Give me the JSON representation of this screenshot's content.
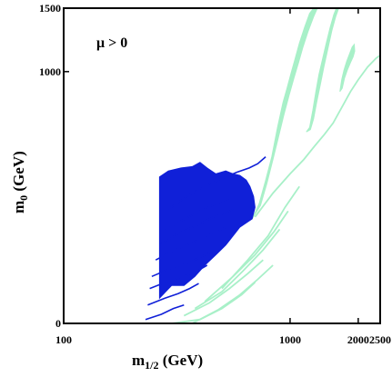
{
  "chart_data": {
    "type": "area",
    "title": "",
    "annotation": "μ > 0",
    "xlabel_main": "m",
    "xlabel_sub": "1/2",
    "xlabel_unit": " (GeV)",
    "ylabel_main": "m",
    "ylabel_sub": "0",
    "ylabel_unit": " (GeV)",
    "xscale": "log",
    "yscale": "log",
    "xlim": [
      100,
      2500
    ],
    "ylim": [
      0,
      1500
    ],
    "xticks": [
      {
        "value": 100,
        "label": "100"
      },
      {
        "value": 1000,
        "label": "1000"
      },
      {
        "value": 2000,
        "label": "2000"
      },
      {
        "value": 2500,
        "label": "2500"
      }
    ],
    "yticks": [
      {
        "value": 0,
        "label": "0"
      },
      {
        "value": 1000,
        "label": "1000"
      },
      {
        "value": 1500,
        "label": "1500"
      }
    ],
    "grid": false,
    "colors": {
      "dark": "#1020d8",
      "light": "#a8f0c8",
      "frame": "#000000"
    },
    "series": [
      {
        "kind": "dark-region",
        "polygon": [
          [
            265,
            235
          ],
          [
            300,
            255
          ],
          [
            340,
            255
          ],
          [
            380,
            270
          ],
          [
            420,
            290
          ],
          [
            470,
            310
          ],
          [
            520,
            330
          ],
          [
            600,
            370
          ],
          [
            680,
            390
          ],
          [
            700,
            420
          ],
          [
            690,
            450
          ],
          [
            665,
            480
          ],
          [
            640,
            500
          ],
          [
            600,
            515
          ],
          [
            560,
            520
          ],
          [
            520,
            530
          ],
          [
            470,
            520
          ],
          [
            430,
            540
          ],
          [
            400,
            560
          ],
          [
            370,
            545
          ],
          [
            330,
            540
          ],
          [
            290,
            530
          ],
          [
            265,
            510
          ]
        ]
      },
      {
        "kind": "dark-line",
        "points": [
          [
            290,
            415
          ],
          [
            350,
            450
          ],
          [
            420,
            480
          ],
          [
            500,
            505
          ],
          [
            580,
            525
          ],
          [
            660,
            540
          ],
          [
            720,
            555
          ],
          [
            780,
            580
          ]
        ]
      },
      {
        "kind": "dark-line",
        "points": [
          [
            275,
            360
          ],
          [
            330,
            385
          ],
          [
            400,
            410
          ],
          [
            470,
            430
          ],
          [
            540,
            445
          ]
        ]
      },
      {
        "kind": "dark-line",
        "points": [
          [
            265,
            330
          ],
          [
            320,
            355
          ],
          [
            390,
            375
          ],
          [
            460,
            395
          ],
          [
            520,
            405
          ],
          [
            560,
            415
          ]
        ]
      },
      {
        "kind": "dark-line",
        "points": [
          [
            255,
            300
          ],
          [
            310,
            320
          ],
          [
            370,
            335
          ],
          [
            430,
            350
          ],
          [
            480,
            360
          ],
          [
            520,
            370
          ]
        ]
      },
      {
        "kind": "dark-line",
        "points": [
          [
            245,
            270
          ],
          [
            300,
            285
          ],
          [
            360,
            295
          ],
          [
            420,
            310
          ],
          [
            470,
            318
          ],
          [
            500,
            325
          ]
        ]
      },
      {
        "kind": "dark-line",
        "points": [
          [
            240,
            250
          ],
          [
            290,
            262
          ],
          [
            340,
            270
          ],
          [
            390,
            280
          ],
          [
            430,
            290
          ]
        ]
      },
      {
        "kind": "dark-line",
        "points": [
          [
            235,
            225
          ],
          [
            280,
            235
          ],
          [
            320,
            242
          ],
          [
            360,
            250
          ],
          [
            395,
            258
          ]
        ]
      },
      {
        "kind": "dark-line",
        "points": [
          [
            230,
            205
          ],
          [
            270,
            212
          ],
          [
            305,
            220
          ],
          [
            340,
            225
          ]
        ]
      },
      {
        "kind": "light-region",
        "polygon": [
          [
            680,
            390
          ],
          [
            730,
            430
          ],
          [
            780,
            500
          ],
          [
            830,
            580
          ],
          [
            880,
            700
          ],
          [
            930,
            820
          ],
          [
            970,
            900
          ],
          [
            1010,
            990
          ],
          [
            1050,
            1080
          ],
          [
            1100,
            1200
          ],
          [
            1160,
            1330
          ],
          [
            1220,
            1450
          ],
          [
            1270,
            1500
          ],
          [
            1320,
            1500
          ],
          [
            1270,
            1420
          ],
          [
            1200,
            1290
          ],
          [
            1140,
            1170
          ],
          [
            1090,
            1060
          ],
          [
            1040,
            960
          ],
          [
            990,
            860
          ],
          [
            940,
            760
          ],
          [
            890,
            660
          ],
          [
            840,
            570
          ],
          [
            790,
            490
          ],
          [
            740,
            425
          ]
        ]
      },
      {
        "kind": "light-region",
        "polygon": [
          [
            1180,
            680
          ],
          [
            1220,
            700
          ],
          [
            1260,
            780
          ],
          [
            1300,
            880
          ],
          [
            1340,
            980
          ],
          [
            1390,
            1080
          ],
          [
            1440,
            1190
          ],
          [
            1500,
            1320
          ],
          [
            1560,
            1440
          ],
          [
            1600,
            1500
          ],
          [
            1640,
            1500
          ],
          [
            1590,
            1420
          ],
          [
            1530,
            1300
          ],
          [
            1470,
            1160
          ],
          [
            1410,
            1030
          ],
          [
            1360,
            920
          ],
          [
            1310,
            820
          ],
          [
            1270,
            740
          ],
          [
            1230,
            690
          ]
        ]
      },
      {
        "kind": "light-region",
        "polygon": [
          [
            1660,
            880
          ],
          [
            1700,
            900
          ],
          [
            1740,
            960
          ],
          [
            1790,
            1010
          ],
          [
            1850,
            1060
          ],
          [
            1900,
            1100
          ],
          [
            1930,
            1140
          ],
          [
            1920,
            1190
          ],
          [
            1880,
            1170
          ],
          [
            1830,
            1120
          ],
          [
            1780,
            1070
          ],
          [
            1730,
            1010
          ],
          [
            1690,
            950
          ]
        ]
      },
      {
        "kind": "light-line",
        "points": [
          [
            700,
            395
          ],
          [
            840,
            460
          ],
          [
            1000,
            520
          ],
          [
            1150,
            570
          ],
          [
            1280,
            620
          ],
          [
            1420,
            670
          ],
          [
            1550,
            720
          ],
          [
            1700,
            800
          ],
          [
            1850,
            880
          ],
          [
            2000,
            950
          ],
          [
            2200,
            1030
          ],
          [
            2400,
            1090
          ],
          [
            2500,
            1110
          ]
        ]
      },
      {
        "kind": "light-line",
        "points": [
          [
            500,
            250
          ],
          [
            650,
            300
          ],
          [
            800,
            350
          ],
          [
            950,
            420
          ],
          [
            1100,
            480
          ]
        ]
      },
      {
        "kind": "light-line",
        "points": [
          [
            420,
            230
          ],
          [
            560,
            270
          ],
          [
            700,
            310
          ],
          [
            850,
            360
          ],
          [
            980,
            410
          ]
        ]
      },
      {
        "kind": "light-line",
        "points": [
          [
            380,
            220
          ],
          [
            500,
            245
          ],
          [
            620,
            280
          ],
          [
            760,
            320
          ],
          [
            900,
            365
          ]
        ]
      },
      {
        "kind": "light-line",
        "points": [
          [
            370,
            200
          ],
          [
            480,
            218
          ],
          [
            600,
            240
          ],
          [
            720,
            265
          ],
          [
            840,
            290
          ]
        ]
      },
      {
        "kind": "light-line",
        "points": [
          [
            340,
            210
          ],
          [
            440,
            228
          ],
          [
            540,
            250
          ],
          [
            650,
            275
          ],
          [
            760,
            300
          ]
        ]
      },
      {
        "kind": "light-line",
        "points": [
          [
            300,
            190
          ],
          [
            400,
            205
          ],
          [
            500,
            220
          ],
          [
            610,
            240
          ],
          [
            700,
            260
          ]
        ]
      }
    ]
  }
}
